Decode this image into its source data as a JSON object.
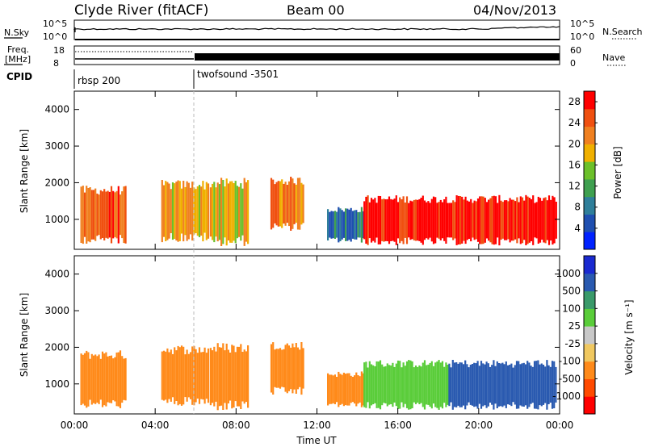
{
  "header": {
    "station": "Clyde River (fitACF)",
    "beam": "Beam 00",
    "date": "04/Nov/2013"
  },
  "strip": {
    "nsky_label": "N.Sky",
    "nsearch_label": "N.Search",
    "freq_label_1": "Freq.",
    "freq_label_2": "[MHz]",
    "nave_label": "Nave",
    "cpid_label": "CPID",
    "nsky_ticks": [
      "10^5",
      "10^0"
    ],
    "nsearch_ticks": [
      "10^5",
      "10^0"
    ],
    "freq_ticks": [
      "18",
      "8"
    ],
    "nave_ticks": [
      "60",
      "0"
    ],
    "cpid_segments": [
      {
        "name": "rbsp 200",
        "start_h": 0,
        "end_h": 6.0
      },
      {
        "name": "twofsound -3501",
        "start_h": 6.0,
        "end_h": 24
      }
    ]
  },
  "colors": {
    "power": [
      "#0022ff",
      "#1f4fb0",
      "#2f7f9a",
      "#3fa050",
      "#6cc02a",
      "#f0b000",
      "#f08020",
      "#f05010",
      "#ff0000"
    ],
    "velocity": [
      "#ff0000",
      "#ff4a00",
      "#ff8a1a",
      "#f0c860",
      "#c8c8c8",
      "#5acd3a",
      "#3a9a6a",
      "#2a5ab0",
      "#1a2ad0"
    ]
  },
  "chart_data": [
    {
      "type": "heatmap",
      "title": "",
      "xlabel": "Time UT",
      "ylabel": "Slant Range [km]",
      "xlim": [
        0,
        24
      ],
      "ylim": [
        180,
        4500
      ],
      "x_ticks": [
        "00:00",
        "04:00",
        "08:00",
        "12:00",
        "16:00",
        "20:00",
        "00:00"
      ],
      "y_ticks": [
        1000,
        2000,
        3000,
        4000
      ],
      "colorbar": {
        "label": "Power [dB]",
        "ticks": [
          4,
          8,
          12,
          16,
          20,
          24,
          28
        ],
        "range": [
          0,
          30
        ]
      },
      "echo_regions": [
        {
          "start_h": 0.3,
          "end_h": 2.5,
          "range_min_km": 400,
          "range_max_km": 1850,
          "level": 24
        },
        {
          "start_h": 4.3,
          "end_h": 6.6,
          "range_min_km": 450,
          "range_max_km": 2000,
          "level": 20
        },
        {
          "start_h": 6.7,
          "end_h": 8.6,
          "range_min_km": 350,
          "range_max_km": 2050,
          "level": 18
        },
        {
          "start_h": 9.7,
          "end_h": 11.3,
          "range_min_km": 750,
          "range_max_km": 2100,
          "level": 22
        },
        {
          "start_h": 12.5,
          "end_h": 14.3,
          "range_min_km": 400,
          "range_max_km": 1300,
          "level": 8
        },
        {
          "start_h": 14.3,
          "end_h": 23.8,
          "range_min_km": 350,
          "range_max_km": 1600,
          "level": 28
        }
      ]
    },
    {
      "type": "heatmap",
      "title": "",
      "xlabel": "Time UT",
      "ylabel": "Slant Range [km]",
      "xlim": [
        0,
        24
      ],
      "ylim": [
        180,
        4500
      ],
      "x_ticks": [
        "00:00",
        "04:00",
        "08:00",
        "12:00",
        "16:00",
        "20:00",
        "00:00"
      ],
      "y_ticks": [
        1000,
        2000,
        3000,
        4000
      ],
      "colorbar": {
        "label": "Velocity [m s⁻¹]",
        "ticks": [
          "1000",
          "500",
          "100",
          "25",
          "-25",
          "-100",
          "-500",
          "-1000"
        ]
      },
      "echo_regions": [
        {
          "start_h": 0.3,
          "end_h": 2.5,
          "range_min_km": 400,
          "range_max_km": 1850,
          "level": -300
        },
        {
          "start_h": 4.3,
          "end_h": 6.6,
          "range_min_km": 450,
          "range_max_km": 2000,
          "level": -300
        },
        {
          "start_h": 6.7,
          "end_h": 8.6,
          "range_min_km": 350,
          "range_max_km": 2050,
          "level": -300
        },
        {
          "start_h": 9.7,
          "end_h": 11.3,
          "range_min_km": 750,
          "range_max_km": 2100,
          "level": -300
        },
        {
          "start_h": 12.5,
          "end_h": 14.3,
          "range_min_km": 400,
          "range_max_km": 1300,
          "level": -200
        },
        {
          "start_h": 14.3,
          "end_h": 18.5,
          "range_min_km": 350,
          "range_max_km": 1600,
          "level": 50
        },
        {
          "start_h": 18.5,
          "end_h": 23.8,
          "range_min_km": 350,
          "range_max_km": 1600,
          "level": 700
        }
      ]
    }
  ]
}
